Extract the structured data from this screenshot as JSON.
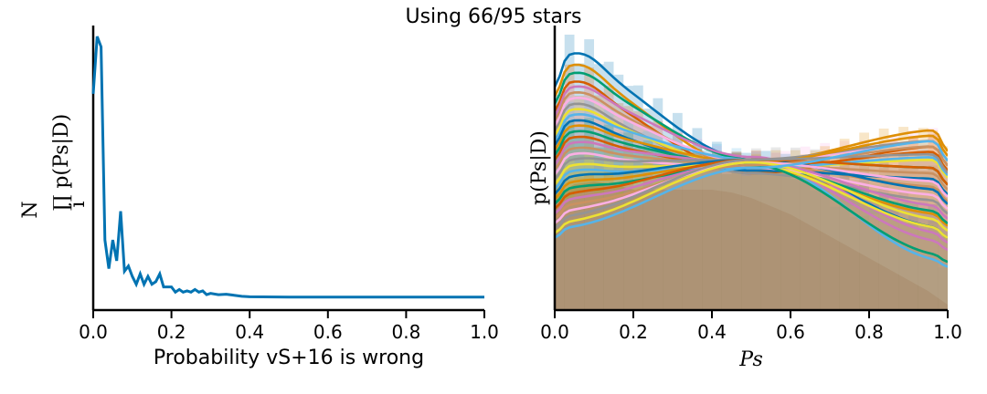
{
  "suptitle": "Using 66/95 stars",
  "colors": {
    "left_line": "#0173b2",
    "palette": [
      "#0173b2",
      "#de8f05",
      "#029e73",
      "#d55e00",
      "#cc78bc",
      "#ca9161",
      "#fbafe4",
      "#949494",
      "#ece133",
      "#56b4e9"
    ],
    "hist_fill": "#b07e68"
  },
  "chart_data": [
    {
      "type": "line",
      "title": "",
      "xlabel": "Probability vS+16 is wrong",
      "ylabel": "∏ p(Ps|D)",
      "ylabel_sup": "N",
      "ylabel_sub": "i",
      "xlim": [
        0.0,
        1.0
      ],
      "ylim": [
        0.0,
        1.0
      ],
      "xticks": [
        "0.0",
        "0.2",
        "0.4",
        "0.6",
        "0.8",
        "1.0"
      ],
      "show_yticks": false,
      "grid": false,
      "series": [
        {
          "x": [
            0.0,
            0.01,
            0.02,
            0.03,
            0.04,
            0.05,
            0.06,
            0.07,
            0.08,
            0.09,
            0.1,
            0.11,
            0.12,
            0.13,
            0.14,
            0.15,
            0.16,
            0.17,
            0.18,
            0.19,
            0.2,
            0.21,
            0.22,
            0.23,
            0.24,
            0.25,
            0.26,
            0.27,
            0.28,
            0.29,
            0.3,
            0.32,
            0.34,
            0.36,
            0.38,
            0.4,
            0.5,
            0.6,
            0.7,
            0.8,
            0.9,
            1.0
          ],
          "y": [
            0.78,
            1.0,
            0.96,
            0.22,
            0.11,
            0.22,
            0.14,
            0.33,
            0.1,
            0.12,
            0.08,
            0.05,
            0.09,
            0.05,
            0.08,
            0.05,
            0.06,
            0.09,
            0.04,
            0.04,
            0.04,
            0.02,
            0.03,
            0.02,
            0.025,
            0.02,
            0.03,
            0.02,
            0.025,
            0.01,
            0.015,
            0.01,
            0.012,
            0.008,
            0.004,
            0.002,
            0.001,
            0.001,
            0.001,
            0.001,
            0.001,
            0.001
          ]
        }
      ]
    },
    {
      "type": "area",
      "title": "",
      "xlabel": "Ps",
      "ylabel": "p(Ps|D)",
      "xlim": [
        0.0,
        1.0
      ],
      "ylim": [
        0.0,
        1.0
      ],
      "xticks": [
        "0.0",
        "0.2",
        "0.4",
        "0.6",
        "0.8",
        "1.0"
      ],
      "show_yticks": false,
      "grid": false,
      "base_histogram": {
        "note": "filled distribution beneath many overlapping density curves",
        "x": [
          0.0,
          0.05,
          0.1,
          0.15,
          0.2,
          0.25,
          0.3,
          0.35,
          0.4,
          0.45,
          0.5,
          0.55,
          0.6,
          0.65,
          0.7,
          0.75,
          0.8,
          0.85,
          0.9,
          0.95,
          1.0
        ],
        "y": [
          0.42,
          0.46,
          0.47,
          0.46,
          0.44,
          0.44,
          0.44,
          0.44,
          0.44,
          0.43,
          0.41,
          0.38,
          0.35,
          0.31,
          0.27,
          0.23,
          0.19,
          0.15,
          0.11,
          0.07,
          0.02
        ]
      },
      "curves": [
        {
          "y0": 0.92,
          "y_mid": 0.55,
          "y1": 0.3
        },
        {
          "y0": 0.88,
          "y_mid": 0.52,
          "y1": 0.35
        },
        {
          "y0": 0.85,
          "y_mid": 0.55,
          "y1": 0.52
        },
        {
          "y0": 0.82,
          "y_mid": 0.5,
          "y1": 0.6
        },
        {
          "y0": 0.8,
          "y_mid": 0.56,
          "y1": 0.28
        },
        {
          "y0": 0.78,
          "y_mid": 0.53,
          "y1": 0.45
        },
        {
          "y0": 0.76,
          "y_mid": 0.54,
          "y1": 0.62
        },
        {
          "y0": 0.74,
          "y_mid": 0.5,
          "y1": 0.4
        },
        {
          "y0": 0.72,
          "y_mid": 0.52,
          "y1": 0.55
        },
        {
          "y0": 0.7,
          "y_mid": 0.55,
          "y1": 0.18
        },
        {
          "y0": 0.68,
          "y_mid": 0.51,
          "y1": 0.48
        },
        {
          "y0": 0.66,
          "y_mid": 0.54,
          "y1": 0.66
        },
        {
          "y0": 0.64,
          "y_mid": 0.53,
          "y1": 0.36
        },
        {
          "y0": 0.62,
          "y_mid": 0.52,
          "y1": 0.58
        },
        {
          "y0": 0.6,
          "y_mid": 0.54,
          "y1": 0.25
        },
        {
          "y0": 0.58,
          "y_mid": 0.53,
          "y1": 0.5
        },
        {
          "y0": 0.56,
          "y_mid": 0.52,
          "y1": 0.42
        },
        {
          "y0": 0.54,
          "y_mid": 0.55,
          "y1": 0.62
        },
        {
          "y0": 0.52,
          "y_mid": 0.53,
          "y1": 0.3
        },
        {
          "y0": 0.5,
          "y_mid": 0.52,
          "y1": 0.56
        },
        {
          "y0": 0.48,
          "y_mid": 0.55,
          "y1": 0.44
        },
        {
          "y0": 0.46,
          "y_mid": 0.54,
          "y1": 0.64
        },
        {
          "y0": 0.44,
          "y_mid": 0.53,
          "y1": 0.2
        },
        {
          "y0": 0.42,
          "y_mid": 0.55,
          "y1": 0.52
        },
        {
          "y0": 0.4,
          "y_mid": 0.54,
          "y1": 0.38
        },
        {
          "y0": 0.38,
          "y_mid": 0.53,
          "y1": 0.6
        },
        {
          "y0": 0.36,
          "y_mid": 0.54,
          "y1": 0.47
        },
        {
          "y0": 0.34,
          "y_mid": 0.55,
          "y1": 0.57
        },
        {
          "y0": 0.32,
          "y_mid": 0.54,
          "y1": 0.33
        },
        {
          "y0": 0.3,
          "y_mid": 0.52,
          "y1": 0.62
        }
      ]
    }
  ]
}
